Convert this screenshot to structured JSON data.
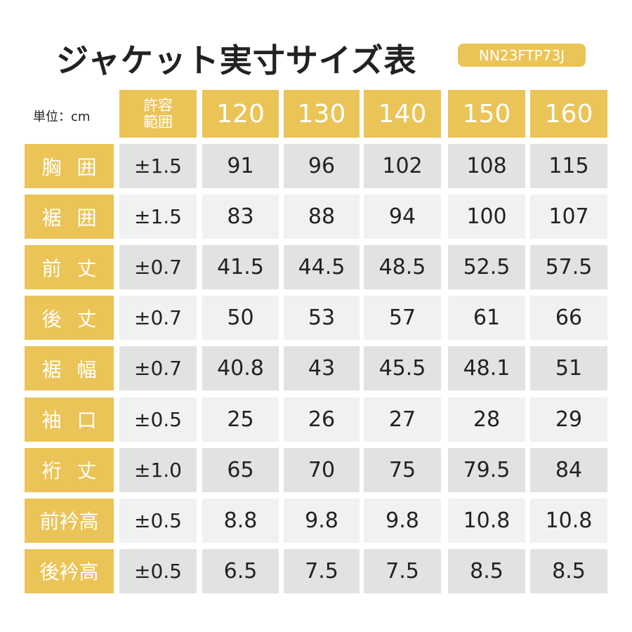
{
  "header": {
    "title": "ジャケット実寸サイズ表",
    "code": "NN23FTP73J"
  },
  "table": {
    "unit": "単位：cm",
    "tolerance_header": "許容範囲",
    "sizes": [
      120,
      130,
      140,
      150,
      160
    ],
    "rows": [
      {
        "label": "胸囲",
        "tolerance": "±1.5",
        "values": [
          91,
          96,
          102,
          108,
          115
        ]
      },
      {
        "label": "裾囲",
        "tolerance": "±1.5",
        "values": [
          83,
          88,
          94,
          100,
          107
        ]
      },
      {
        "label": "前丈",
        "tolerance": "±0.7",
        "values": [
          41.5,
          44.5,
          48.5,
          52.5,
          57.5
        ]
      },
      {
        "label": "後丈",
        "tolerance": "±0.7",
        "values": [
          50,
          53,
          57,
          61,
          66
        ]
      },
      {
        "label": "裾幅",
        "tolerance": "±0.7",
        "values": [
          40.8,
          43,
          45.5,
          48.1,
          51
        ]
      },
      {
        "label": "袖口",
        "tolerance": "±0.5",
        "values": [
          25,
          26,
          27,
          28,
          29
        ]
      },
      {
        "label": "裄丈",
        "tolerance": "±1.0",
        "values": [
          65,
          70,
          75,
          79.5,
          84
        ]
      },
      {
        "label": "前衿高",
        "tolerance": "±0.5",
        "values": [
          8.8,
          9.8,
          9.8,
          10.8,
          10.8
        ]
      },
      {
        "label": "後衿高",
        "tolerance": "±0.5",
        "values": [
          6.5,
          7.5,
          7.5,
          8.5,
          8.5
        ]
      }
    ]
  }
}
